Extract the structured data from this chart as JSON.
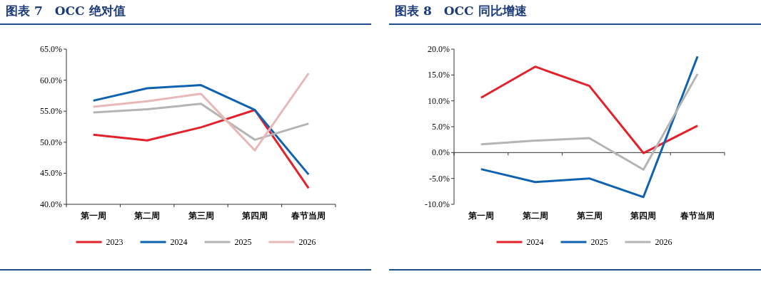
{
  "chart_data": [
    {
      "type": "line",
      "title": "图表 7　OCC 绝对值",
      "categories": [
        "第一周",
        "第二周",
        "第三周",
        "第四周",
        "春节当周"
      ],
      "series": [
        {
          "name": "2023",
          "color": "#e3212b",
          "values": [
            51.2,
            50.3,
            52.4,
            55.2,
            42.6
          ]
        },
        {
          "name": "2024",
          "color": "#0f62b0",
          "values": [
            56.7,
            58.7,
            59.2,
            55.2,
            44.8
          ]
        },
        {
          "name": "2025",
          "color": "#b4b4b4",
          "values": [
            54.8,
            55.3,
            56.2,
            50.4,
            53.0
          ]
        },
        {
          "name": "2026",
          "color": "#e8b8b8",
          "values": [
            55.7,
            56.6,
            57.8,
            48.7,
            61.1
          ]
        }
      ],
      "ylim": [
        40,
        65
      ],
      "yticks": [
        {
          "value": 40,
          "label": "40.0%"
        },
        {
          "value": 45,
          "label": "45.0%"
        },
        {
          "value": 50,
          "label": "50.0%"
        },
        {
          "value": 55,
          "label": "55.0%"
        },
        {
          "value": 60,
          "label": "60.0%"
        },
        {
          "value": 65,
          "label": "65.0%"
        }
      ],
      "legend": "bottom",
      "grid": false,
      "marker": "none",
      "line_style": "solid"
    },
    {
      "type": "line",
      "title": "图表 8　OCC 同比增速",
      "categories": [
        "第一周",
        "第二周",
        "第三周",
        "第四周",
        "春节当周"
      ],
      "series": [
        {
          "name": "2024",
          "color": "#e3212b",
          "values": [
            10.6,
            16.6,
            12.9,
            -0.1,
            5.2
          ]
        },
        {
          "name": "2025",
          "color": "#0f62b0",
          "values": [
            -3.2,
            -5.7,
            -5.0,
            -8.6,
            18.6
          ]
        },
        {
          "name": "2026",
          "color": "#b4b4b4",
          "values": [
            1.6,
            2.3,
            2.8,
            -3.3,
            15.2
          ]
        }
      ],
      "ylim": [
        -10,
        20
      ],
      "yticks": [
        {
          "value": -10,
          "label": "-10.0%"
        },
        {
          "value": -5,
          "label": "-5.0%"
        },
        {
          "value": 0,
          "label": "0.0%"
        },
        {
          "value": 5,
          "label": "5.0%"
        },
        {
          "value": 10,
          "label": "10.0%"
        },
        {
          "value": 15,
          "label": "15.0%"
        },
        {
          "value": 20,
          "label": "20.0%"
        }
      ],
      "legend": "bottom",
      "grid": false,
      "marker": "none",
      "line_style": "solid"
    }
  ]
}
